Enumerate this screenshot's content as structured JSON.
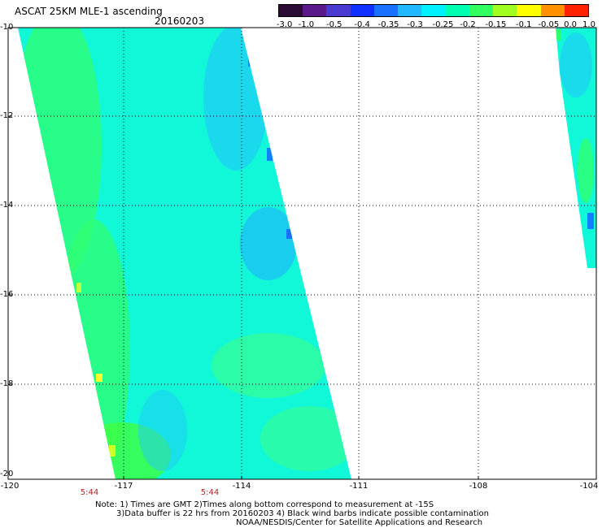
{
  "title": "ASCAT 25KM MLE-1 ascending",
  "date": "20160203",
  "colorbar": {
    "labels": [
      "-3.0",
      "-1.0",
      "-0.5",
      "-0.4",
      "-0.35",
      "-0.3",
      "-0.25",
      "-0.2",
      "-0.15",
      "-0.1",
      "-0.05",
      "0.0",
      "1.0"
    ],
    "colors": [
      "#2b0a33",
      "#5a1a8a",
      "#4a3ad0",
      "#1030ff",
      "#1a70ff",
      "#22b8ff",
      "#00f0ff",
      "#00ffb0",
      "#30ff60",
      "#a0ff20",
      "#ffff00",
      "#ff9000",
      "#ff2000"
    ]
  },
  "axes": {
    "lat_labels": [
      "-10",
      "-12",
      "-14",
      "-16",
      "-18",
      "-20"
    ],
    "lon_labels": [
      "-120",
      "-117",
      "-114",
      "-111",
      "-108",
      "-104"
    ]
  },
  "time_labels": [
    "5:44",
    "5:44"
  ],
  "notes": [
    "Note: 1) Times are GMT 2)Times along bottom correspond to measurement at -15S",
    "3)Data buffer is 22 hrs from 20160203 4) Black wind barbs indicate possible contamination",
    "NOAA/NESDIS/Center for Satellite Applications and Research"
  ],
  "colors": {
    "swath_base": "#10f8d8",
    "swath_green": "#30ff70",
    "swath_blue": "#20c8f8",
    "grid": "#000000"
  }
}
